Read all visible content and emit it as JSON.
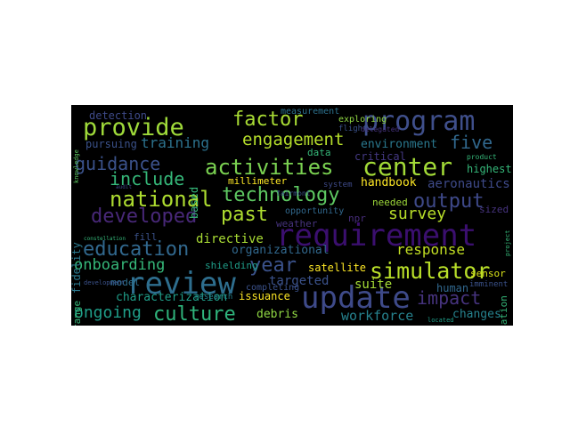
{
  "wordcloud": {
    "background": "#000000",
    "words": [
      {
        "text": "program",
        "color": "#3f4f8b"
      },
      {
        "text": "requirement",
        "color": "#3b0f6f"
      },
      {
        "text": "update",
        "color": "#3e4a89"
      },
      {
        "text": "review",
        "color": "#2e6e8e"
      },
      {
        "text": "provide",
        "color": "#9fda3a"
      },
      {
        "text": "center",
        "color": "#a2da37"
      },
      {
        "text": "technology",
        "color": "#5ec962"
      },
      {
        "text": "national",
        "color": "#addc30"
      },
      {
        "text": "activities",
        "color": "#7ad151"
      },
      {
        "text": "engagement",
        "color": "#b5de2b"
      },
      {
        "text": "simulator",
        "color": "#b8de29"
      },
      {
        "text": "developed",
        "color": "#482878"
      },
      {
        "text": "education",
        "color": "#31688e"
      },
      {
        "text": "culture",
        "color": "#2fb47c"
      },
      {
        "text": "factor",
        "color": "#a8db34"
      },
      {
        "text": "guidance",
        "color": "#3b528b"
      },
      {
        "text": "output",
        "color": "#3e4989"
      },
      {
        "text": "past",
        "color": "#addc30"
      },
      {
        "text": "year",
        "color": "#3b528b"
      },
      {
        "text": "impact",
        "color": "#46337e"
      },
      {
        "text": "five",
        "color": "#31688e"
      },
      {
        "text": "include",
        "color": "#35b779"
      },
      {
        "text": "survey",
        "color": "#b8de29"
      },
      {
        "text": "ongoing",
        "color": "#1f9e89"
      },
      {
        "text": "onboarding",
        "color": "#35b779"
      },
      {
        "text": "response",
        "color": "#c2df23"
      },
      {
        "text": "training",
        "color": "#2c728e"
      },
      {
        "text": "workforce",
        "color": "#26828e"
      },
      {
        "text": "aeronautics",
        "color": "#3e4a89"
      },
      {
        "text": "handbook",
        "color": "#fde725"
      },
      {
        "text": "targeted",
        "color": "#3b528b"
      },
      {
        "text": "suite",
        "color": "#a5db36"
      },
      {
        "text": "human",
        "color": "#31688e"
      },
      {
        "text": "changes",
        "color": "#26828e"
      },
      {
        "text": "directive",
        "color": "#a8db34"
      },
      {
        "text": "organizational",
        "color": "#31688e"
      },
      {
        "text": "characterization",
        "color": "#1f9e89"
      },
      {
        "text": "environment",
        "color": "#2a788e"
      },
      {
        "text": "debris",
        "color": "#90d743"
      },
      {
        "text": "satellite",
        "color": "#fde725"
      },
      {
        "text": "detection",
        "color": "#3e4a89"
      },
      {
        "text": "pursuing",
        "color": "#3b528b"
      },
      {
        "text": "based",
        "color": "#35b779"
      },
      {
        "text": "critical",
        "color": "#443983"
      },
      {
        "text": "fidelity",
        "color": "#2a788e"
      },
      {
        "text": "highest",
        "color": "#35b779"
      },
      {
        "text": "needed",
        "color": "#9fda3a"
      },
      {
        "text": "issuance",
        "color": "#fde725"
      },
      {
        "text": "millimeter",
        "color": "#fde725"
      },
      {
        "text": "shielding",
        "color": "#1f9e89"
      },
      {
        "text": "model",
        "color": "#2e6e8e"
      },
      {
        "text": "range",
        "color": "#35b779"
      },
      {
        "text": "observation",
        "color": "#35b779"
      },
      {
        "text": "sensor",
        "color": "#d8e219"
      },
      {
        "text": "completing",
        "color": "#3b528b"
      },
      {
        "text": "measurement",
        "color": "#2c728e"
      },
      {
        "text": "exploring",
        "color": "#90d743"
      },
      {
        "text": "data",
        "color": "#35b779"
      },
      {
        "text": "weather",
        "color": "#46337e"
      },
      {
        "text": "npr",
        "color": "#472d7b"
      },
      {
        "text": "opportunity",
        "color": "#31688e"
      },
      {
        "text": "fill",
        "color": "#3b528b"
      },
      {
        "text": "sized",
        "color": "#46337e"
      },
      {
        "text": "research",
        "color": "#26828e"
      },
      {
        "text": "flight",
        "color": "#3b528b"
      },
      {
        "text": "system",
        "color": "#3e4a89"
      },
      {
        "text": "fairmont",
        "color": "#3b528b"
      },
      {
        "text": "imminent",
        "color": "#3b528b"
      },
      {
        "text": "delegated",
        "color": "#46337e"
      },
      {
        "text": "product",
        "color": "#35b779"
      },
      {
        "text": "located",
        "color": "#1f9e89"
      },
      {
        "text": "development",
        "color": "#3b528b"
      },
      {
        "text": "constellation",
        "color": "#35b779"
      },
      {
        "text": "knowledge",
        "color": "#5ec962"
      },
      {
        "text": "audit",
        "color": "#3e4a89"
      },
      {
        "text": "project",
        "color": "#35b779"
      }
    ]
  }
}
